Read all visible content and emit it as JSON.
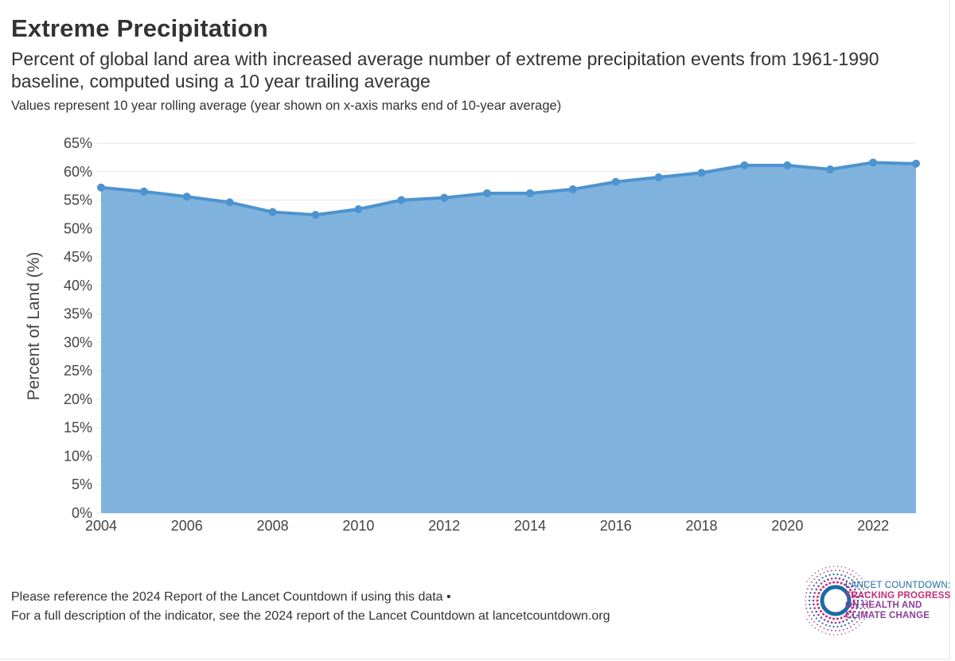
{
  "header": {
    "title": "Extreme Precipitation",
    "subtitle": "Percent of global land area with increased average number of extreme precipitation events from 1961-1990 baseline, computed using a 10 year trailing average",
    "note": "Values represent 10 year rolling average (year shown on x-axis marks end of 10-year average)"
  },
  "chart_data": {
    "type": "area",
    "title": "Extreme Precipitation",
    "xlabel": "",
    "ylabel": "Percent of Land (%)",
    "x": [
      2004,
      2005,
      2006,
      2007,
      2008,
      2009,
      2010,
      2011,
      2012,
      2013,
      2014,
      2015,
      2016,
      2017,
      2018,
      2019,
      2020,
      2021,
      2022,
      2023
    ],
    "series": [
      {
        "name": "Percent of Land",
        "values": [
          57.2,
          56.5,
          55.6,
          54.6,
          52.9,
          52.4,
          53.4,
          55.0,
          55.4,
          56.2,
          56.2,
          56.9,
          58.2,
          59.0,
          59.8,
          61.1,
          61.1,
          60.4,
          61.6,
          61.4
        ]
      }
    ],
    "ylim": [
      0,
      65
    ],
    "yticks": [
      0,
      5,
      10,
      15,
      20,
      25,
      30,
      35,
      40,
      45,
      50,
      55,
      60,
      65
    ],
    "ytick_labels": [
      "0%",
      "5%",
      "10%",
      "15%",
      "20%",
      "25%",
      "30%",
      "35%",
      "40%",
      "45%",
      "50%",
      "55%",
      "60%",
      "65%"
    ],
    "xlim": [
      2004,
      2023
    ],
    "xticks": [
      2004,
      2006,
      2008,
      2010,
      2012,
      2014,
      2016,
      2018,
      2020,
      2022
    ],
    "xtick_labels": [
      "2004",
      "2006",
      "2008",
      "2010",
      "2012",
      "2014",
      "2016",
      "2018",
      "2020",
      "2022"
    ],
    "grid": true,
    "colors": {
      "area": "#7fb3dd",
      "line": "#4d93cf",
      "marker": "#4d93cf",
      "grid": "#e6e6e6"
    }
  },
  "footer": {
    "line1": "Please reference the 2024 Report of the Lancet Countdown if using this data •",
    "line2": "For a full description of the indicator, see the 2024 report of the Lancet Countdown at lancetcountdown.org"
  },
  "logo": {
    "line1": "LANCET COUNTDOWN:",
    "line2": "TRACKING PROGRESS",
    "line3": "ON HEALTH AND",
    "line4": "CLIMATE CHANGE"
  }
}
